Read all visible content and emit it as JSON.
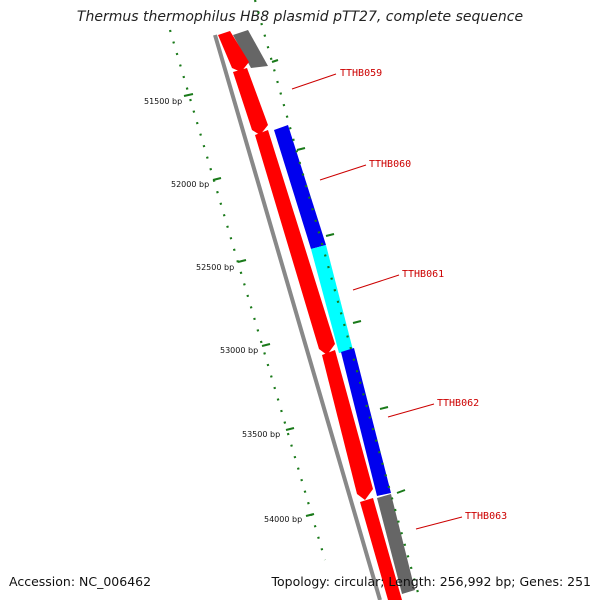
{
  "title": "Thermus thermophilus HB8 plasmid pTT27, complete sequence",
  "footer": {
    "accession": "Accession: NC_006462",
    "summary": "Topology: circular; Length: 256,992 bp; Genes: 251"
  },
  "ruler": {
    "labels": [
      "51500 bp",
      "52000 bp",
      "52500 bp",
      "53000 bp",
      "53500 bp",
      "54000 bp"
    ]
  },
  "colors": {
    "red_feature": "#ff0000",
    "gray_feature": "#777777",
    "blue_feature": "#0000ee",
    "cyan_feature": "#00ffff",
    "backbone": "#888888",
    "ticks": "#1a7a1a",
    "label": "#cc0000"
  },
  "genes": [
    {
      "name": "TTHB059"
    },
    {
      "name": "TTHB060"
    },
    {
      "name": "TTHB061"
    },
    {
      "name": "TTHB062"
    },
    {
      "name": "TTHB063"
    }
  ]
}
